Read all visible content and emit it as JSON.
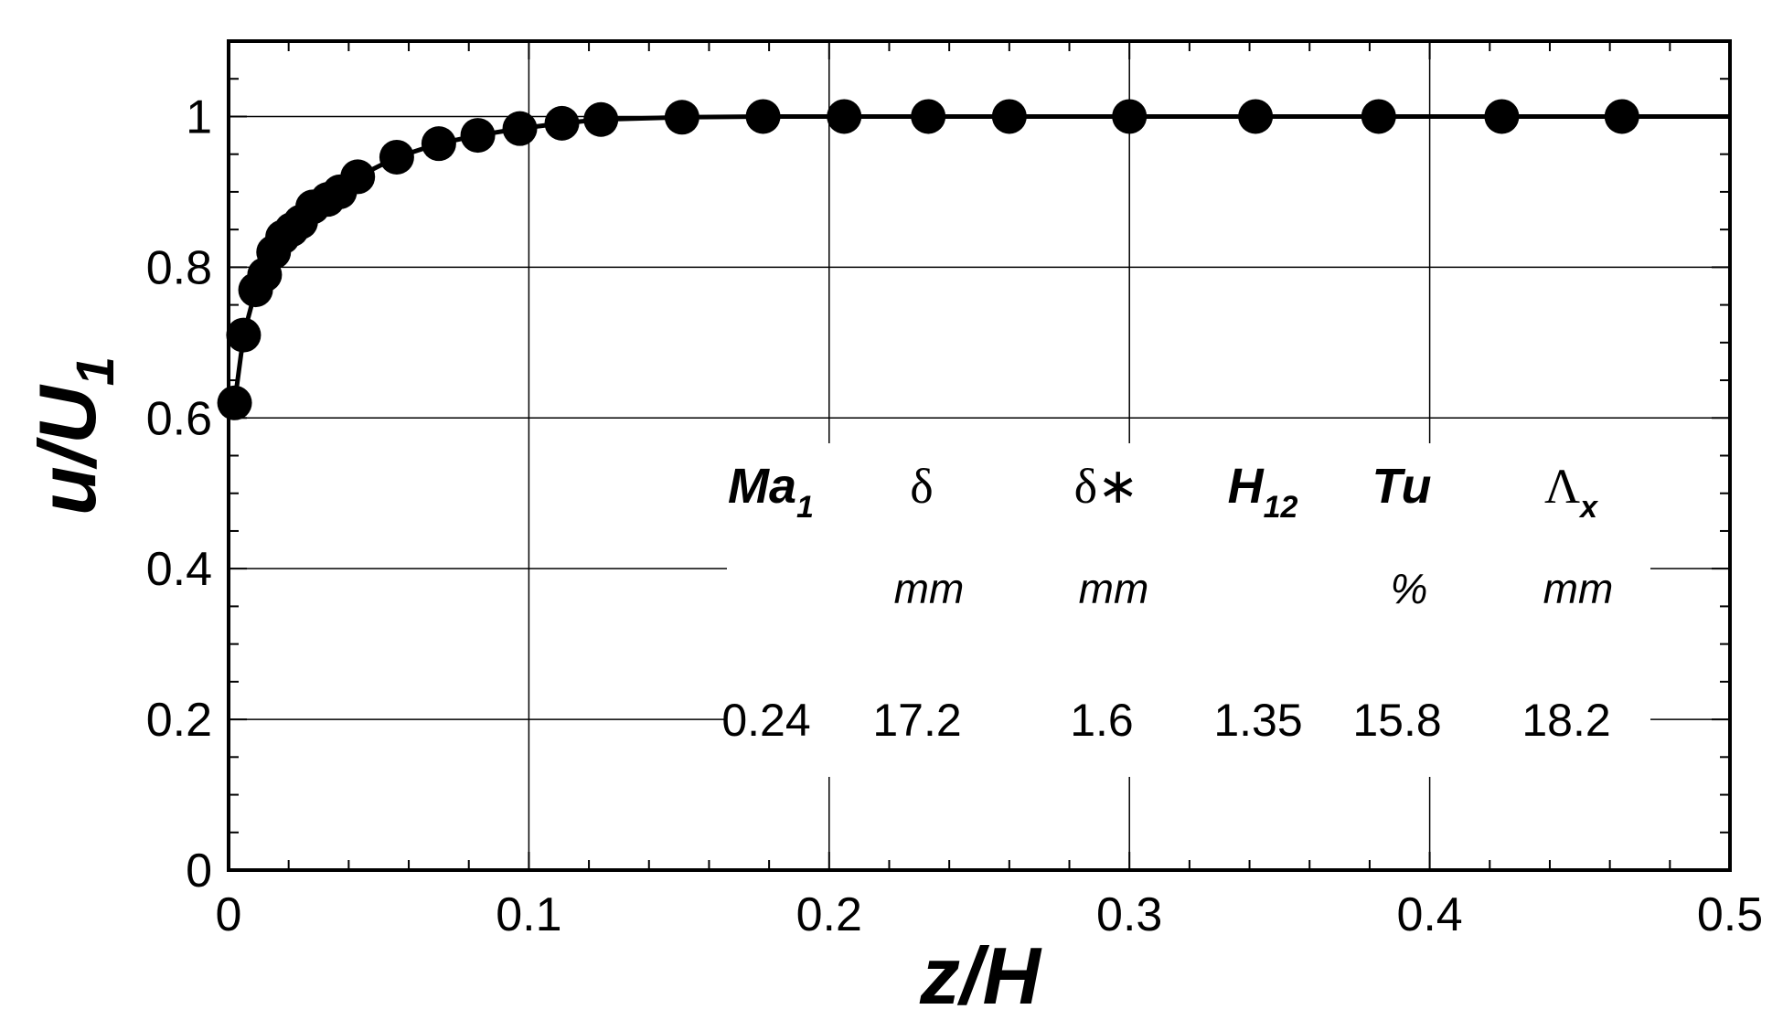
{
  "chart_data": {
    "type": "line",
    "xlabel": "z/H",
    "ylabel": {
      "main": "u/U",
      "sub": "1"
    },
    "xlim": [
      0,
      0.5
    ],
    "ylim": [
      0,
      1.1
    ],
    "xticks": [
      0,
      0.1,
      0.2,
      0.3,
      0.4,
      0.5
    ],
    "xtick_labels": [
      "0",
      "0.1",
      "0.2",
      "0.3",
      "0.4",
      "0.5"
    ],
    "yticks": [
      0,
      0.2,
      0.4,
      0.6,
      0.8,
      1
    ],
    "ytick_labels": [
      "0",
      "0.2",
      "0.4",
      "0.6",
      "0.8",
      "1"
    ],
    "grid": true,
    "series": [
      {
        "marker": "filled-circle",
        "line": "solid",
        "color": "#000000",
        "x": [
          0.002,
          0.005,
          0.009,
          0.012,
          0.015,
          0.018,
          0.021,
          0.024,
          0.028,
          0.033,
          0.037,
          0.043,
          0.056,
          0.07,
          0.083,
          0.097,
          0.111,
          0.124,
          0.151,
          0.178,
          0.205,
          0.233,
          0.26,
          0.3,
          0.342,
          0.383,
          0.424,
          0.464,
          0.5
        ],
        "y": [
          0.62,
          0.71,
          0.77,
          0.79,
          0.82,
          0.84,
          0.85,
          0.86,
          0.88,
          0.89,
          0.9,
          0.92,
          0.946,
          0.964,
          0.975,
          0.984,
          0.991,
          0.996,
          0.999,
          1.0,
          1.0,
          1.0,
          1.0,
          1.0,
          1.0,
          1.0,
          1.0,
          1.0,
          1.0
        ],
        "markers": 28
      }
    ],
    "annotation_table": {
      "columns": [
        {
          "name": "Ma",
          "sub": "1",
          "style": "bold-italic",
          "unit": "",
          "value": "0.24"
        },
        {
          "name": "δ",
          "sub": "",
          "style": "greek",
          "unit": "mm",
          "value": "17.2"
        },
        {
          "name": "δ∗",
          "sub": "",
          "style": "greek",
          "unit": "mm",
          "value": "1.6"
        },
        {
          "name": "H",
          "sub": "12",
          "style": "bold-italic",
          "unit": "",
          "value": "1.35"
        },
        {
          "name": "Tu",
          "sub": "",
          "style": "bold-italic",
          "unit": "%",
          "value": "15.8"
        },
        {
          "name": "Λ",
          "sub": "x",
          "style": "greek",
          "unit": "mm",
          "value": "18.2"
        }
      ]
    }
  }
}
